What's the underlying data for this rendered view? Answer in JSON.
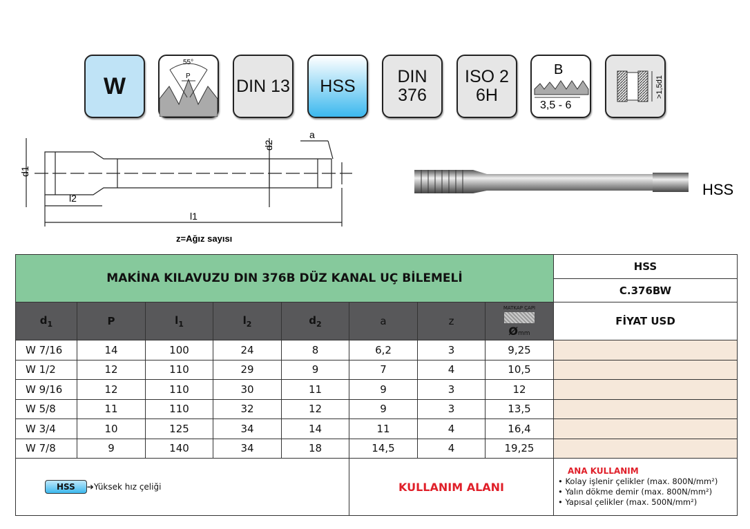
{
  "icons": [
    {
      "id": "w",
      "label": "W"
    },
    {
      "id": "thread-angle",
      "label": "55°",
      "sub": "P"
    },
    {
      "id": "din13",
      "label": "DIN 13"
    },
    {
      "id": "hss",
      "label": "HSS"
    },
    {
      "id": "din376",
      "line1": "DIN",
      "line2": "376"
    },
    {
      "id": "iso",
      "line1": "ISO 2",
      "line2": "6H"
    },
    {
      "id": "chamfer",
      "label": "B",
      "sub": "3,5 - 6"
    },
    {
      "id": "depth",
      "label": ">1,5d1"
    }
  ],
  "drawing": {
    "d1": "d1",
    "d2": "d2",
    "a": "a",
    "l1": "l1",
    "l2": "l2",
    "caption": "z=Ağız sayısı"
  },
  "photo_label": "HSS",
  "table": {
    "title": "MAKİNA KILAVUZU DIN 376B DÜZ KANAL UÇ BİLEMELİ",
    "material": "HSS",
    "code": "C.376BW",
    "price_header": "FİYAT USD",
    "drill_label": "MATKAP ÇAPI",
    "drill_unit": "mm",
    "columns": [
      {
        "t": "d",
        "s": "1"
      },
      {
        "t": "P",
        "s": ""
      },
      {
        "t": "l",
        "s": "1"
      },
      {
        "t": "l",
        "s": "2"
      },
      {
        "t": "d",
        "s": "2"
      },
      {
        "t": "a",
        "s": ""
      },
      {
        "t": "z",
        "s": ""
      }
    ],
    "rows": [
      [
        "W 7/16",
        "14",
        "100",
        "24",
        "8",
        "6,2",
        "3",
        "9,25"
      ],
      [
        "W 1/2",
        "12",
        "110",
        "29",
        "9",
        "7",
        "4",
        "10,5"
      ],
      [
        "W 9/16",
        "12",
        "110",
        "30",
        "11",
        "9",
        "3",
        "12"
      ],
      [
        "W 5/8",
        "11",
        "110",
        "32",
        "12",
        "9",
        "3",
        "13,5"
      ],
      [
        "W 3/4",
        "10",
        "125",
        "34",
        "14",
        "11",
        "4",
        "16,4"
      ],
      [
        "W 7/8",
        "9",
        "140",
        "34",
        "18",
        "14,5",
        "4",
        "19,25"
      ]
    ]
  },
  "footer": {
    "legend_badge": "HSS",
    "legend_text": "Yüksek hız çeliği",
    "usage_title": "KULLANIM ALANI",
    "main_use_title": "ANA KULLANIM",
    "uses": [
      "• Kolay işlenir çelikler (max. 800N/mm²)",
      "• Yalın dökme demir (max. 800N/mm²)",
      "• Yapısal çelikler (max. 500N/mm²)"
    ]
  },
  "colors": {
    "green": "#86c99c",
    "header_gray": "#58585a",
    "price": "#f6e8da",
    "red": "#e0202a",
    "hss_blue": "#3cb8ee"
  }
}
